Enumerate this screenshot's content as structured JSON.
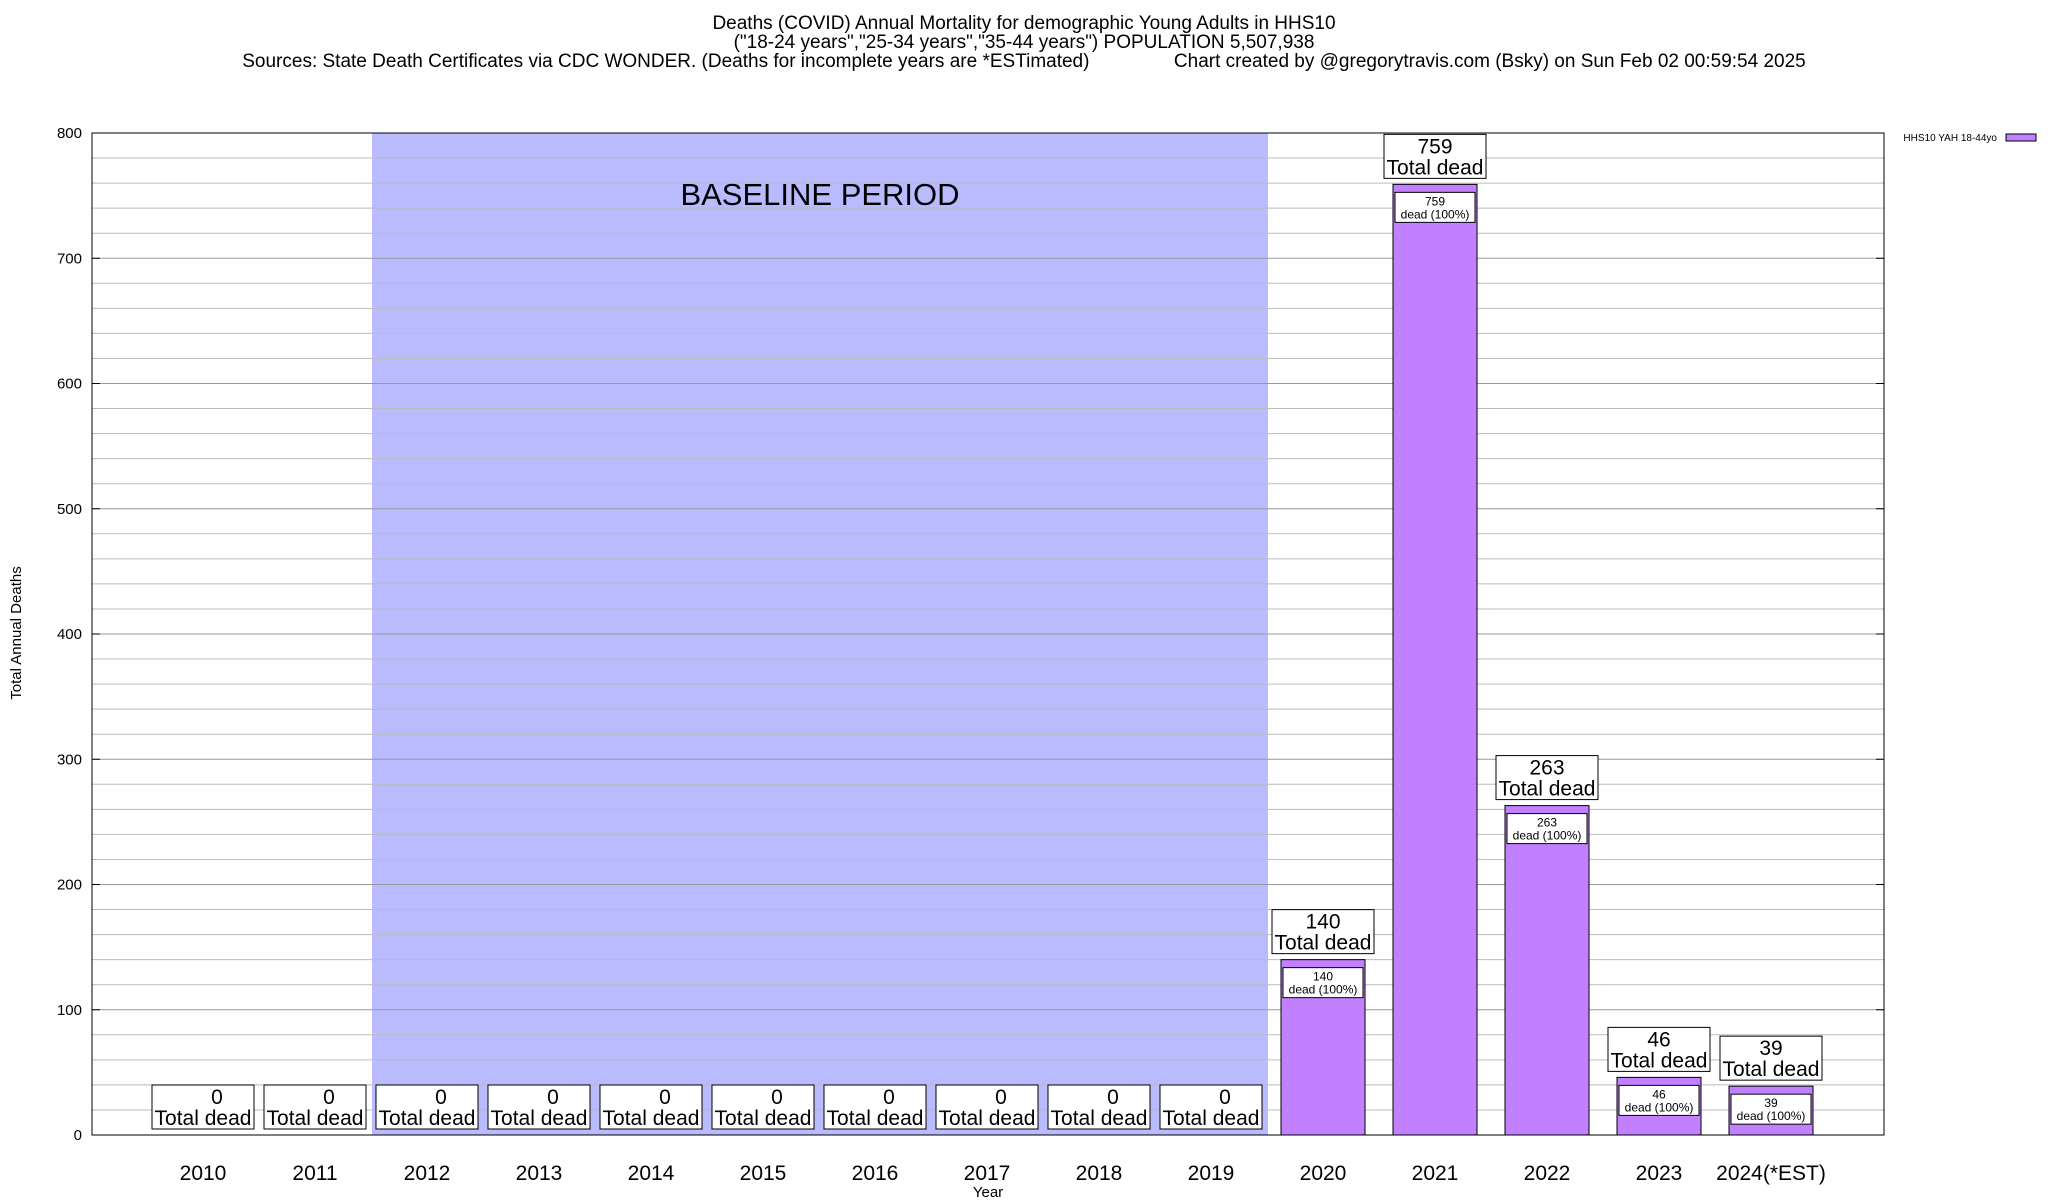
{
  "title_lines": [
    "Deaths (COVID) Annual Mortality for demographic Young Adults in HHS10",
    "(\"18-24 years\",\"25-34 years\",\"35-44 years\") POPULATION 5,507,938",
    "Sources: State Death Certificates via CDC WONDER. (Deaths for incomplete years are *ESTimated)                Chart created by @gregorytravis.com (Bsky) on Sun Feb 02 00:59:54 2025"
  ],
  "chart_data": {
    "type": "bar",
    "categories": [
      "2010",
      "2011",
      "2012",
      "2013",
      "2014",
      "2015",
      "2016",
      "2017",
      "2018",
      "2019",
      "2020",
      "2021",
      "2022",
      "2023",
      "2024(*EST)"
    ],
    "series": [
      {
        "name": "HHS10 YAH 18-44yo",
        "values": [
          0,
          0,
          0,
          0,
          0,
          0,
          0,
          0,
          0,
          0,
          140,
          759,
          263,
          46,
          39
        ]
      }
    ],
    "total_label": "Total dead",
    "inner_label_suffix": "dead (100%)",
    "xlabel": "Year",
    "ylabel": "Total Annual Deaths",
    "ylim": [
      0,
      800
    ],
    "yticks": [
      0,
      100,
      200,
      300,
      400,
      500,
      600,
      700,
      800
    ],
    "grid": true,
    "legend_position": "top-right",
    "annotation": "BASELINE PERIOD",
    "baseline_span": [
      "2012",
      "2019"
    ],
    "colors": {
      "bar": "#c080ff",
      "baseline": "#babaff",
      "grid": "#bbbbbb",
      "frame": "#000000"
    }
  }
}
